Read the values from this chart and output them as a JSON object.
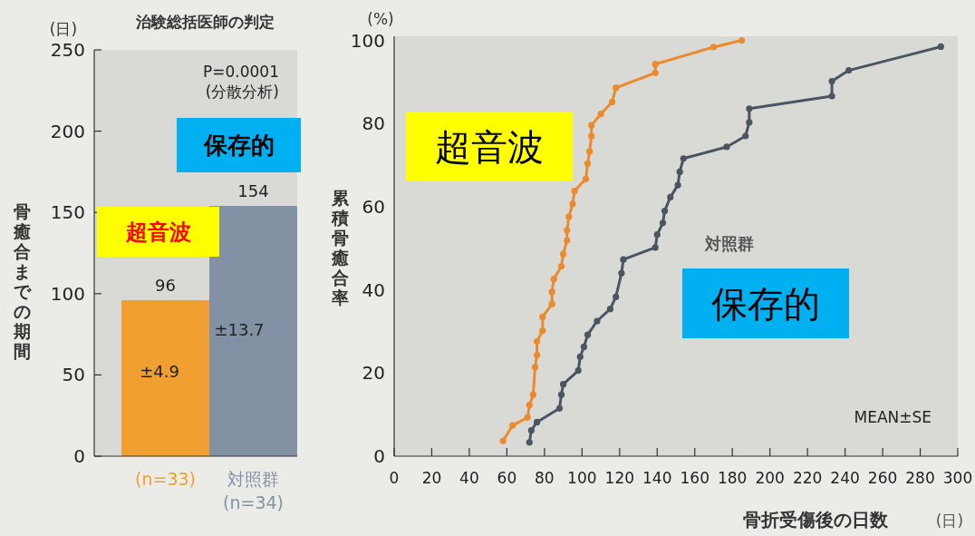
{
  "chart_data": [
    {
      "type": "bar",
      "title": "治験総括医師の判定",
      "ylabel": "骨癒合までの期間",
      "categories": [
        "(n=33)",
        "対照群\n(n=34)"
      ],
      "values": [
        96,
        154
      ],
      "colors": [
        "#f0a030",
        "#8391a4"
      ],
      "ylim": [
        0,
        250
      ],
      "yticks": [
        0,
        50,
        100,
        150,
        200,
        250
      ],
      "data_labels": true,
      "annotations": [
        "(日)",
        "P=0.0001\n(分散分析)",
        "超音波",
        "保存的",
        "±4.9",
        "±13.7"
      ]
    },
    {
      "type": "line",
      "ylabel": "累積骨癒合率",
      "xlabel": "骨折受傷後の日数",
      "xlim": [
        0,
        300
      ],
      "xticks": [
        0,
        20,
        40,
        60,
        80,
        100,
        120,
        140,
        160,
        180,
        200,
        220,
        240,
        260,
        280,
        300
      ],
      "ylim": [
        0,
        101
      ],
      "yticks": [
        0,
        20,
        40,
        60,
        80,
        100
      ],
      "marker": "circle",
      "line_style": "solid",
      "series": [
        {
          "color": "#ec8a2c",
          "x": [
            58,
            63,
            71,
            72,
            74,
            75,
            76,
            76,
            79,
            79,
            84,
            84,
            85,
            89,
            90,
            92,
            92,
            93,
            95,
            96,
            102,
            103,
            104,
            105,
            105,
            110,
            116,
            118,
            139,
            139,
            170,
            185
          ],
          "values": [
            3.7,
            7.4,
            9.3,
            12.3,
            14.8,
            21.4,
            24.3,
            27.6,
            30.2,
            33.5,
            36.6,
            39.5,
            42.6,
            45.7,
            48.6,
            51.9,
            54.3,
            57.6,
            60.7,
            63.8,
            66.7,
            70.4,
            73.3,
            77,
            79.6,
            82.3,
            85.2,
            88.6,
            92.2,
            94.3,
            98.4,
            100
          ]
        },
        {
          "name": "対照群",
          "color": "#4a5561",
          "x": [
            72,
            73,
            76,
            88,
            89,
            90,
            98,
            99,
            101,
            103,
            108,
            115,
            118,
            121,
            122,
            139,
            140,
            143,
            144,
            147,
            151,
            152,
            154,
            177,
            187,
            189,
            189,
            233,
            233,
            242,
            291
          ],
          "values": [
            3.3,
            6.2,
            8.2,
            11.5,
            14.8,
            17.3,
            20.6,
            23.9,
            26.3,
            29.2,
            32.5,
            35.4,
            38.3,
            44,
            47.3,
            50.2,
            53.3,
            56.1,
            59,
            62.3,
            65.2,
            68.4,
            71.6,
            74.4,
            77,
            80.3,
            83.6,
            86.6,
            90.2,
            92.8,
            98.5
          ]
        }
      ],
      "annotations": [
        "(%)",
        "超音波",
        "保存的",
        "MEAN±SE",
        "(日)"
      ]
    }
  ]
}
